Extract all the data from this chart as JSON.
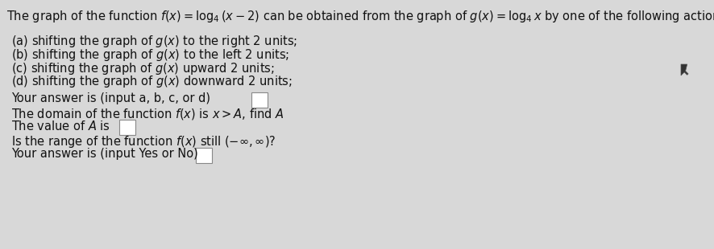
{
  "bg_color": "#d8d8d8",
  "text_color": "#111111",
  "title": "The graph of the function $f(x) = \\log_4(x-2)$ can be obtained from the graph of $g(x) = \\log_4 x$ by one of the following actions:",
  "options": [
    "(a) shifting the graph of $g(x)$ to the right 2 units;",
    "(b) shifting the graph of $g(x)$ to the left 2 units;",
    "(c) shifting the graph of $g(x)$ upward 2 units;",
    "(d) shifting the graph of $g(x)$ downward 2 units;"
  ],
  "q1_text": "Your answer is (input a, b, c, or d)",
  "q2_text": "The domain of the function $f(x)$ is $x > A$, find $A$",
  "q3a_text": "The value of $A$ is",
  "q4_text": "Is the range of the function $f(x)$ still $(-\\infty, \\infty)$?",
  "q5_text": "Your answer is (input Yes or No)",
  "box_color": "#ffffff",
  "box_edge_color": "#888888",
  "font_size": 10.5,
  "title_font_size": 10.5
}
